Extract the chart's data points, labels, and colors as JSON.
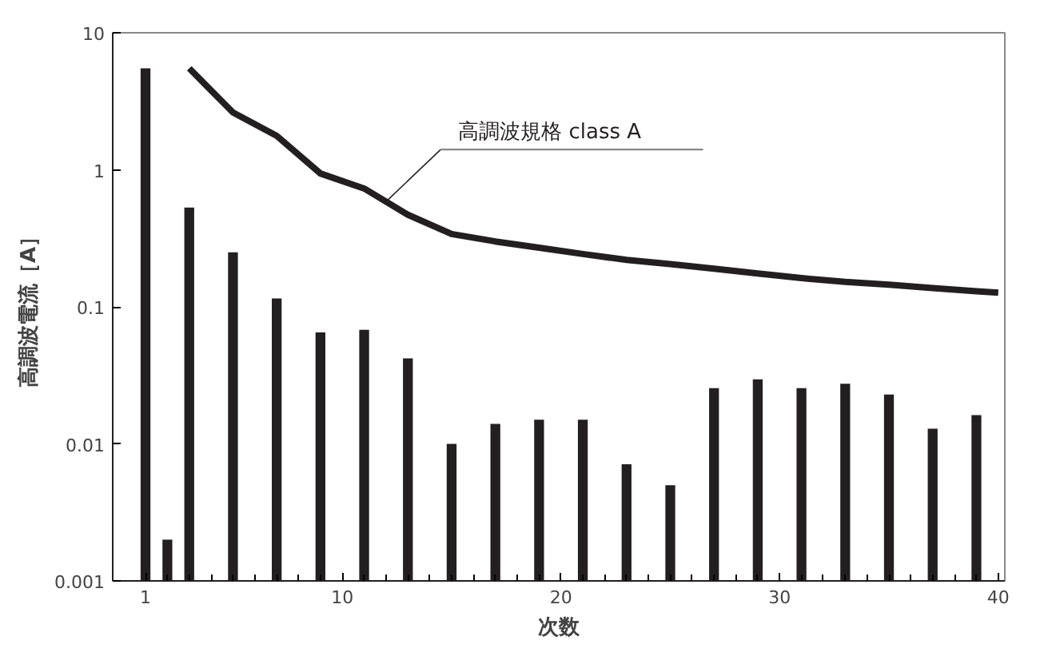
{
  "chart_data": {
    "type": "bar",
    "xlabel": "次数",
    "ylabel": "高調波電流［A］",
    "log": "y",
    "grid": false,
    "xlim": [
      -0.5,
      40.3
    ],
    "xticks": [
      1,
      10,
      20,
      30,
      40
    ],
    "ylim": [
      0.001,
      10
    ],
    "yticks": [
      {
        "value": 0.001,
        "label": "0.001"
      },
      {
        "value": 0.01,
        "label": "0.01"
      },
      {
        "value": 0.1,
        "label": "0.1"
      },
      {
        "value": 1,
        "label": "1"
      },
      {
        "value": 10,
        "label": "10"
      }
    ],
    "series": [
      {
        "color": "#231f20",
        "x": [
          1,
          2,
          3,
          5,
          7,
          9,
          11,
          13,
          15,
          17,
          19,
          21,
          23,
          25,
          27,
          29,
          31,
          33,
          35,
          37,
          39
        ],
        "values": [
          5.5,
          0.002,
          0.53,
          0.25,
          0.115,
          0.065,
          0.068,
          0.042,
          0.01,
          0.014,
          0.015,
          0.015,
          0.0071,
          0.005,
          0.0255,
          0.0296,
          0.0255,
          0.0275,
          0.0229,
          0.0129,
          0.0162
        ]
      },
      {
        "type": "line",
        "name": "高調波規格 class A",
        "color": "#231f20",
        "line_style": "solid",
        "marker": "none",
        "x": [
          3,
          5,
          7,
          9,
          11,
          13,
          15,
          17,
          19,
          21,
          23,
          25,
          27,
          29,
          31,
          33,
          35,
          37,
          39,
          40
        ],
        "values": [
          5.5,
          2.62,
          1.77,
          0.94,
          0.73,
          0.47,
          0.34,
          0.3,
          0.27,
          0.243,
          0.22,
          0.205,
          0.19,
          0.175,
          0.162,
          0.152,
          0.145,
          0.137,
          0.13,
          0.127
        ]
      }
    ]
  }
}
